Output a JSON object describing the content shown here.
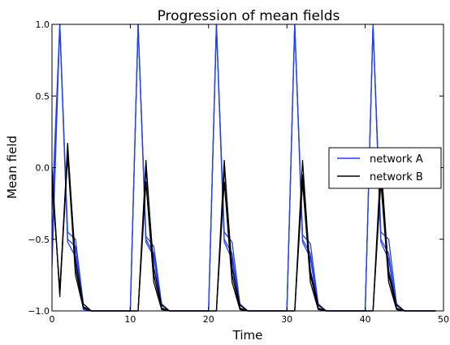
{
  "chart_data": {
    "type": "line",
    "title": "Progression of mean fields",
    "xlabel": "Time",
    "ylabel": "Mean field",
    "xlim": [
      0,
      50
    ],
    "ylim": [
      -1.0,
      1.0
    ],
    "xticks": [
      0,
      10,
      20,
      30,
      40,
      50
    ],
    "xtick_labels": [
      "0",
      "10",
      "20",
      "30",
      "40",
      "50"
    ],
    "yticks": [
      1.0,
      0.5,
      0.0,
      -0.5,
      -1.0
    ],
    "ytick_labels": [
      "1.0",
      "0.5",
      "0.0",
      "−0.5",
      "−1.0"
    ],
    "grid": false,
    "legend_position": "center-right",
    "colors": {
      "network A": "#1f3fff",
      "network B": "#000000"
    },
    "series": [
      {
        "name": "network A",
        "variants": [
          {
            "x": [
              0,
              1,
              2,
              3,
              4,
              5,
              6,
              7,
              8,
              9,
              10,
              11,
              12,
              13,
              14,
              15,
              16,
              17,
              18,
              19,
              20,
              21,
              22,
              23,
              24,
              25,
              26,
              27,
              28,
              29,
              30,
              31,
              32,
              33,
              34,
              35,
              36,
              37,
              38,
              39,
              40,
              41,
              42,
              43,
              44,
              45,
              46,
              47,
              48,
              49
            ],
            "y": [
              -0.7,
              1.0,
              -0.5,
              -0.55,
              -0.98,
              -1.0,
              -1.0,
              -1.0,
              -1.0,
              -1.0,
              -1.0,
              1.0,
              -0.5,
              -0.6,
              -0.98,
              -1.0,
              -1.0,
              -1.0,
              -1.0,
              -1.0,
              -1.0,
              1.0,
              -0.5,
              -0.6,
              -0.98,
              -1.0,
              -1.0,
              -1.0,
              -1.0,
              -1.0,
              -1.0,
              1.0,
              -0.5,
              -0.6,
              -0.98,
              -1.0,
              -1.0,
              -1.0,
              -1.0,
              -1.0,
              -1.0,
              1.0,
              -0.5,
              -0.6,
              -0.98,
              -1.0,
              -1.0,
              -1.0,
              -1.0,
              -1.0
            ]
          },
          {
            "x": [
              0,
              1,
              2,
              3,
              4,
              5,
              6,
              7,
              8,
              9,
              10,
              11,
              12,
              13,
              14,
              15,
              16,
              17,
              18,
              19,
              20,
              21,
              22,
              23,
              24,
              25,
              26,
              27,
              28,
              29,
              30,
              31,
              32,
              33,
              34,
              35,
              36,
              37,
              38,
              39,
              40,
              41,
              42,
              43,
              44,
              45,
              46,
              47,
              48,
              49
            ],
            "y": [
              -0.3,
              1.0,
              -0.45,
              -0.5,
              -0.95,
              -1.0,
              -1.0,
              -1.0,
              -1.0,
              -1.0,
              -1.0,
              1.0,
              -0.48,
              -0.55,
              -0.95,
              -1.0,
              -1.0,
              -1.0,
              -1.0,
              -1.0,
              -1.0,
              1.0,
              -0.45,
              -0.52,
              -0.95,
              -1.0,
              -1.0,
              -1.0,
              -1.0,
              -1.0,
              -1.0,
              1.0,
              -0.47,
              -0.53,
              -0.95,
              -1.0,
              -1.0,
              -1.0,
              -1.0,
              -1.0,
              -1.0,
              1.0,
              -0.45,
              -0.5,
              -0.95,
              -1.0,
              -1.0,
              -1.0,
              -1.0,
              -1.0
            ]
          },
          {
            "x": [
              0,
              1,
              2,
              3,
              4,
              5,
              6,
              7,
              8,
              9,
              10,
              11,
              12,
              13,
              14,
              15,
              16,
              17,
              18,
              19,
              20,
              21,
              22,
              23,
              24,
              25,
              26,
              27,
              28,
              29,
              30,
              31,
              32,
              33,
              34,
              35,
              36,
              37,
              38,
              39,
              40,
              41,
              42,
              43,
              44,
              45,
              46,
              47,
              48,
              49
            ],
            "y": [
              -0.55,
              1.0,
              -0.52,
              -0.62,
              -0.99,
              -1.0,
              -1.0,
              -1.0,
              -1.0,
              -1.0,
              -1.0,
              1.0,
              -0.52,
              -0.62,
              -0.99,
              -1.0,
              -1.0,
              -1.0,
              -1.0,
              -1.0,
              -1.0,
              1.0,
              -0.52,
              -0.64,
              -0.99,
              -1.0,
              -1.0,
              -1.0,
              -1.0,
              -1.0,
              -1.0,
              1.0,
              -0.52,
              -0.63,
              -0.99,
              -1.0,
              -1.0,
              -1.0,
              -1.0,
              -1.0,
              -1.0,
              1.0,
              -0.52,
              -0.64,
              -0.99,
              -1.0,
              -1.0,
              -1.0,
              -1.0,
              -1.0
            ]
          }
        ]
      },
      {
        "name": "network B",
        "variants": [
          {
            "x": [
              0,
              1,
              2,
              3,
              4,
              5,
              6,
              7,
              8,
              9,
              10,
              11,
              12,
              13,
              14,
              15,
              16,
              17,
              18,
              19,
              20,
              21,
              22,
              23,
              24,
              25,
              26,
              27,
              28,
              29,
              30,
              31,
              32,
              33,
              34,
              35,
              36,
              37,
              38,
              39,
              40,
              41,
              42,
              43,
              44,
              45,
              46,
              47,
              48,
              49
            ],
            "y": [
              0.0,
              -0.9,
              0.17,
              -0.7,
              -0.97,
              -1.0,
              -1.0,
              -1.0,
              -1.0,
              -1.0,
              -1.0,
              -1.0,
              0.05,
              -0.75,
              -0.98,
              -1.0,
              -1.0,
              -1.0,
              -1.0,
              -1.0,
              -1.0,
              -1.0,
              0.05,
              -0.75,
              -0.98,
              -1.0,
              -1.0,
              -1.0,
              -1.0,
              -1.0,
              -1.0,
              -1.0,
              0.05,
              -0.75,
              -0.98,
              -1.0,
              -1.0,
              -1.0,
              -1.0,
              -1.0,
              -1.0,
              -1.0,
              0.05,
              -0.75,
              -0.98,
              -1.0,
              -1.0,
              -1.0,
              -1.0,
              -1.0
            ]
          },
          {
            "x": [
              0,
              1,
              2,
              3,
              4,
              5,
              6,
              7,
              8,
              9,
              10,
              11,
              12,
              13,
              14,
              15,
              16,
              17,
              18,
              19,
              20,
              21,
              22,
              23,
              24,
              25,
              26,
              27,
              28,
              29,
              30,
              31,
              32,
              33,
              34,
              35,
              36,
              37,
              38,
              39,
              40,
              41,
              42,
              43,
              44,
              45,
              46,
              47,
              48,
              49
            ],
            "y": [
              -0.1,
              -0.85,
              0.12,
              -0.65,
              -0.95,
              -1.0,
              -1.0,
              -1.0,
              -1.0,
              -1.0,
              -1.0,
              -1.0,
              0.0,
              -0.7,
              -0.96,
              -1.0,
              -1.0,
              -1.0,
              -1.0,
              -1.0,
              -1.0,
              -1.0,
              0.0,
              -0.7,
              -0.96,
              -1.0,
              -1.0,
              -1.0,
              -1.0,
              -1.0,
              -1.0,
              -1.0,
              -0.05,
              -0.72,
              -0.96,
              -1.0,
              -1.0,
              -1.0,
              -1.0,
              -1.0,
              -1.0,
              -1.0,
              -0.05,
              -0.72,
              -0.96,
              -1.0,
              -1.0,
              -1.0,
              -1.0,
              -1.0
            ]
          },
          {
            "x": [
              0,
              1,
              2,
              3,
              4,
              5,
              6,
              7,
              8,
              9,
              10,
              11,
              12,
              13,
              14,
              15,
              16,
              17,
              18,
              19,
              20,
              21,
              22,
              23,
              24,
              25,
              26,
              27,
              28,
              29,
              30,
              31,
              32,
              33,
              34,
              35,
              36,
              37,
              38,
              39,
              40,
              41,
              42,
              43,
              44,
              45,
              46,
              47,
              48,
              49
            ],
            "y": [
              -0.05,
              -0.88,
              0.08,
              -0.75,
              -0.98,
              -1.0,
              -1.0,
              -1.0,
              -1.0,
              -1.0,
              -1.0,
              -1.0,
              -0.1,
              -0.8,
              -0.99,
              -1.0,
              -1.0,
              -1.0,
              -1.0,
              -1.0,
              -1.0,
              -1.0,
              -0.1,
              -0.8,
              -0.99,
              -1.0,
              -1.0,
              -1.0,
              -1.0,
              -1.0,
              -1.0,
              -1.0,
              -0.1,
              -0.8,
              -0.99,
              -1.0,
              -1.0,
              -1.0,
              -1.0,
              -1.0,
              -1.0,
              -1.0,
              -0.1,
              -0.8,
              -0.99,
              -1.0,
              -1.0,
              -1.0,
              -1.0,
              -1.0
            ]
          }
        ]
      }
    ]
  }
}
